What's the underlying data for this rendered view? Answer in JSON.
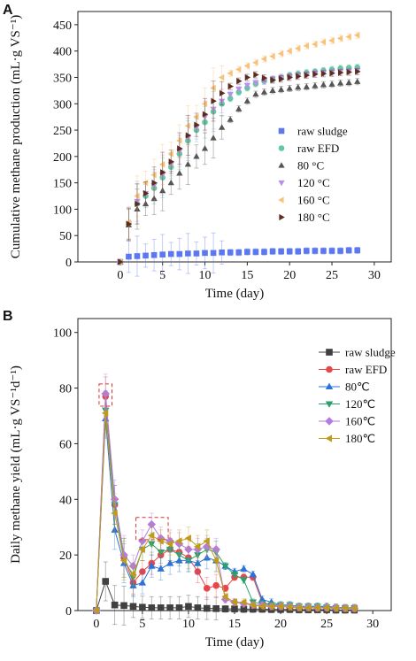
{
  "chart_data": [
    {
      "type": "scatter",
      "panel_label": "A",
      "xlabel": "Time (day)",
      "ylabel": "Cumulative methane production (mL·g VS⁻¹)",
      "xlim": [
        -5,
        32
      ],
      "ylim": [
        0,
        475
      ],
      "xticks": [
        0,
        5,
        10,
        15,
        20,
        25,
        30
      ],
      "yticks": [
        0,
        50,
        100,
        150,
        200,
        250,
        300,
        350,
        400,
        450
      ],
      "legend_position": "right",
      "x": [
        0,
        1,
        2,
        3,
        4,
        5,
        6,
        7,
        8,
        9,
        10,
        11,
        12,
        13,
        14,
        15,
        16,
        17,
        18,
        19,
        20,
        21,
        22,
        23,
        24,
        25,
        26,
        27,
        28
      ],
      "series": [
        {
          "name": "raw sludge",
          "color": "#5b78f0",
          "marker": "square",
          "values": [
            0,
            10,
            11,
            12,
            13,
            14,
            15,
            15,
            16,
            16,
            17,
            17,
            18,
            18,
            18,
            19,
            19,
            19,
            20,
            20,
            20,
            20,
            21,
            21,
            21,
            21,
            21,
            22,
            22
          ]
        },
        {
          "name": "raw EFD",
          "color": "#5fc9a0",
          "marker": "circle",
          "values": [
            0,
            72,
            110,
            125,
            140,
            160,
            180,
            205,
            230,
            250,
            265,
            285,
            300,
            310,
            322,
            330,
            338,
            343,
            346,
            350,
            354,
            357,
            359,
            361,
            363,
            365,
            367,
            368,
            369
          ]
        },
        {
          "name": "80 °C",
          "color": "#555555",
          "marker": "triangle-up",
          "values": [
            0,
            70,
            100,
            110,
            120,
            135,
            150,
            168,
            185,
            200,
            215,
            235,
            255,
            270,
            290,
            305,
            318,
            322,
            325,
            327,
            329,
            331,
            332,
            334,
            336,
            337,
            339,
            340,
            342
          ]
        },
        {
          "name": "120 °C",
          "color": "#b890e8",
          "marker": "triangle-down",
          "values": [
            0,
            73,
            115,
            130,
            145,
            165,
            185,
            210,
            235,
            255,
            275,
            290,
            305,
            318,
            328,
            335,
            340,
            343,
            347,
            350,
            352,
            354,
            356,
            358,
            359,
            360,
            361,
            362,
            363
          ]
        },
        {
          "name": "160 °C",
          "color": "#f7c27a",
          "marker": "triangle-left",
          "values": [
            0,
            75,
            125,
            150,
            165,
            185,
            205,
            230,
            258,
            275,
            300,
            330,
            350,
            358,
            365,
            372,
            378,
            385,
            390,
            395,
            400,
            405,
            410,
            413,
            417,
            420,
            424,
            427,
            430
          ]
        },
        {
          "name": "180 °C",
          "color": "#5c2c1e",
          "marker": "triangle-right",
          "values": [
            0,
            72,
            110,
            130,
            150,
            170,
            190,
            215,
            240,
            260,
            280,
            305,
            320,
            333,
            343,
            350,
            355,
            349,
            345,
            347,
            350,
            352,
            354,
            356,
            357,
            358,
            359,
            360,
            361
          ]
        }
      ]
    },
    {
      "type": "line",
      "panel_label": "B",
      "xlabel": "Time (day)",
      "ylabel": "Daily methane yield (mL·g VS⁻¹d⁻¹)",
      "xlim": [
        -2,
        32
      ],
      "ylim": [
        0,
        105
      ],
      "xticks": [
        0,
        5,
        10,
        15,
        20,
        25,
        30
      ],
      "yticks": [
        0,
        20,
        40,
        60,
        80,
        100
      ],
      "legend_position": "top-right",
      "x": [
        0,
        1,
        2,
        3,
        4,
        5,
        6,
        7,
        8,
        9,
        10,
        11,
        12,
        13,
        14,
        15,
        16,
        17,
        18,
        19,
        20,
        21,
        22,
        23,
        24,
        25,
        26,
        27,
        28
      ],
      "series": [
        {
          "name": "raw sludge",
          "color": "#404040",
          "marker": "square",
          "values": [
            0,
            10.5,
            2,
            1.8,
            1.5,
            1.2,
            1,
            1,
            1,
            1,
            1.5,
            1,
            0.8,
            0.7,
            0.6,
            0.6,
            0.5,
            0.5,
            0.5,
            0.4,
            0.4,
            0.4,
            0.3,
            0.3,
            0.3,
            0.3,
            0.2,
            0.2,
            0.2
          ]
        },
        {
          "name": "raw EFD",
          "color": "#e8474a",
          "marker": "circle",
          "values": [
            0,
            77,
            38,
            19,
            10,
            14,
            17,
            20,
            22,
            21,
            19,
            14,
            8,
            9,
            8,
            12,
            12,
            12,
            3,
            2,
            1.5,
            1.5,
            1,
            1,
            1,
            1,
            0.8,
            0.8,
            0.6
          ]
        },
        {
          "name": "80℃",
          "color": "#2b72d8",
          "marker": "triangle-up",
          "values": [
            0,
            69,
            29,
            17,
            9,
            10,
            16,
            15,
            17,
            18,
            18,
            17,
            19,
            18,
            16,
            14,
            15,
            13,
            4,
            3,
            2,
            2,
            1.5,
            1.5,
            1.5,
            1.5,
            1.2,
            1,
            1
          ]
        },
        {
          "name": "120℃",
          "color": "#2aa06e",
          "marker": "triangle-down",
          "values": [
            0,
            72,
            38,
            19,
            12,
            22,
            24,
            21,
            22,
            20,
            18,
            20,
            22,
            21,
            16,
            13,
            11,
            3,
            2.5,
            2,
            2,
            2,
            1.5,
            1.5,
            1.5,
            1.2,
            1,
            1,
            1
          ]
        },
        {
          "name": "160℃",
          "color": "#b47be0",
          "marker": "diamond",
          "values": [
            0,
            78,
            40,
            20,
            16,
            25,
            31,
            26,
            25,
            24,
            22,
            22,
            23,
            22,
            4,
            3,
            2.5,
            2,
            2,
            1.5,
            1.5,
            1.5,
            1.2,
            1.2,
            1,
            1,
            1,
            0.8,
            0.8
          ]
        },
        {
          "name": "180℃",
          "color": "#c19a18",
          "marker": "triangle-left",
          "values": [
            0,
            71,
            35,
            18,
            13,
            22,
            27,
            25,
            24,
            25,
            26,
            23,
            25,
            18,
            5,
            3,
            3,
            2,
            1.5,
            1.5,
            1.5,
            1.2,
            1,
            1,
            1,
            1,
            0.8,
            0.8,
            0.8
          ]
        }
      ]
    }
  ]
}
